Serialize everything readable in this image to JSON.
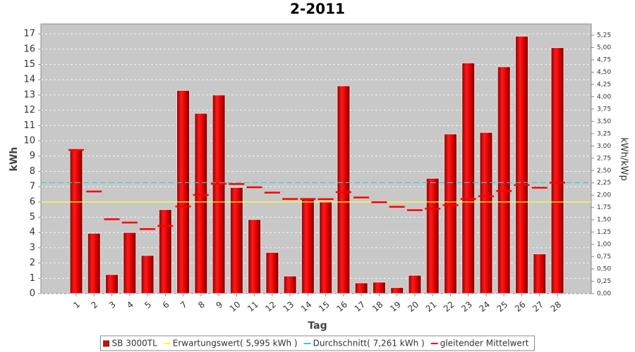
{
  "chart_data": {
    "type": "bar",
    "title": "2-2011",
    "x_label": "Tag",
    "y_label": "kWh",
    "y2_label": "kWh/kWp",
    "categories": [
      "1",
      "2",
      "3",
      "4",
      "5",
      "6",
      "7",
      "8",
      "9",
      "10",
      "11",
      "12",
      "13",
      "14",
      "15",
      "16",
      "17",
      "18",
      "19",
      "20",
      "21",
      "22",
      "23",
      "24",
      "25",
      "26",
      "27",
      "28"
    ],
    "series": [
      {
        "name": "SB 3000TL",
        "color": "#e00000",
        "values": [
          9.4,
          3.95,
          1.25,
          4.0,
          2.5,
          5.5,
          13.3,
          11.8,
          13.0,
          6.95,
          4.85,
          2.7,
          1.15,
          6.2,
          6.0,
          13.6,
          0.7,
          0.75,
          0.4,
          1.2,
          7.55,
          10.45,
          15.1,
          10.55,
          14.85,
          16.85,
          2.6,
          16.1
        ]
      },
      {
        "name": "gleitender Mittelwert",
        "color": "#ff0000",
        "values": [
          9.4,
          6.68,
          4.87,
          4.65,
          4.22,
          4.43,
          5.7,
          6.46,
          7.19,
          7.17,
          6.96,
          6.61,
          6.19,
          6.19,
          6.18,
          6.64,
          6.29,
          5.98,
          5.68,
          5.46,
          5.56,
          5.79,
          6.19,
          6.37,
          6.71,
          7.1,
          6.93,
          7.26
        ]
      }
    ],
    "reference_lines": [
      {
        "name": "Erwartungswert( 5,995 kWh )",
        "value": 5.995,
        "color": "#ffff33"
      },
      {
        "name": "Durchschnitt( 7,261 kWh )",
        "value": 7.261,
        "color": "#33cccc"
      }
    ],
    "ylim": [
      0,
      17.65
    ],
    "yticks": [
      0,
      1,
      2,
      3,
      4,
      5,
      6,
      7,
      8,
      9,
      10,
      11,
      12,
      13,
      14,
      15,
      16,
      17
    ],
    "y2lim": [
      0,
      5.48
    ],
    "y2ticks": [
      {
        "value": 0,
        "label": "0,00"
      },
      {
        "value": 0.25,
        "label": "0,25"
      },
      {
        "value": 0.5,
        "label": "0,50"
      },
      {
        "value": 0.75,
        "label": "0,75"
      },
      {
        "value": 1,
        "label": "1,00"
      },
      {
        "value": 1.25,
        "label": "1,25"
      },
      {
        "value": 1.5,
        "label": "1,50"
      },
      {
        "value": 1.75,
        "label": "1,75"
      },
      {
        "value": 2,
        "label": "2,00"
      },
      {
        "value": 2.25,
        "label": "2,25"
      },
      {
        "value": 2.5,
        "label": "2,50"
      },
      {
        "value": 2.75,
        "label": "2,75"
      },
      {
        "value": 3,
        "label": "3,00"
      },
      {
        "value": 3.25,
        "label": "3,25"
      },
      {
        "value": 3.5,
        "label": "3,50"
      },
      {
        "value": 3.75,
        "label": "3,75"
      },
      {
        "value": 4,
        "label": "4,00"
      },
      {
        "value": 4.25,
        "label": "4,25"
      },
      {
        "value": 4.5,
        "label": "4,50"
      },
      {
        "value": 4.75,
        "label": "4,75"
      },
      {
        "value": 5,
        "label": "5,00"
      },
      {
        "value": 5.25,
        "label": "5,25"
      }
    ],
    "grid": true
  }
}
